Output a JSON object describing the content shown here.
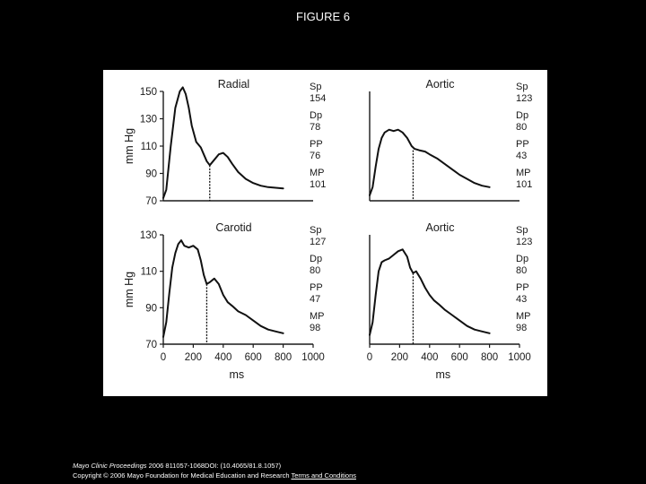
{
  "page": {
    "title": "FIGURE 6",
    "footer": {
      "journal": "Mayo Clinic Proceedings",
      "citation": " 2006 811057-1068DOI: (10.4065/81.8.1057)",
      "copyright": "Copyright © 2006 Mayo Foundation for Medical Education and Research",
      "link": "Terms and Conditions"
    }
  },
  "chart_data": [
    {
      "type": "line",
      "title": "Radial",
      "xlabel": "",
      "ylabel": "mm Hg",
      "xlim": [
        0,
        1000
      ],
      "ylim": [
        70,
        150
      ],
      "x_ticks": [],
      "y_ticks": [
        70,
        90,
        110,
        130,
        150
      ],
      "grid": false,
      "series": [
        {
          "name": "",
          "x": [
            0,
            20,
            50,
            80,
            110,
            130,
            150,
            170,
            190,
            220,
            250,
            270,
            290,
            310,
            340,
            370,
            400,
            430,
            460,
            500,
            550,
            600,
            650,
            700,
            750,
            800
          ],
          "y": [
            72,
            78,
            110,
            138,
            150,
            153,
            148,
            138,
            125,
            113,
            109,
            104,
            99,
            96,
            100,
            104,
            105,
            102,
            97,
            91,
            86,
            83,
            81,
            80,
            79.5,
            79
          ]
        }
      ],
      "marker": {
        "x": 310,
        "ymax": 96
      },
      "readouts": [
        {
          "label": "Sp",
          "value": "154"
        },
        {
          "label": "Dp",
          "value": "78"
        },
        {
          "label": "PP",
          "value": "76"
        },
        {
          "label": "MP",
          "value": "101"
        }
      ]
    },
    {
      "type": "line",
      "title": "Aortic",
      "xlabel": "",
      "ylabel": "",
      "xlim": [
        0,
        1000
      ],
      "ylim": [
        70,
        150
      ],
      "x_ticks": [],
      "y_ticks": [],
      "grid": false,
      "series": [
        {
          "name": "",
          "x": [
            0,
            20,
            40,
            60,
            80,
            100,
            130,
            160,
            190,
            220,
            250,
            280,
            300,
            330,
            370,
            400,
            450,
            500,
            550,
            600,
            650,
            700,
            750,
            800
          ],
          "y": [
            74,
            80,
            95,
            108,
            116,
            120,
            122,
            121,
            122,
            120,
            116,
            110,
            108,
            107,
            106,
            104,
            101,
            97,
            93,
            89,
            86,
            83,
            81,
            80
          ]
        }
      ],
      "marker": {
        "x": 290,
        "ymax": 107
      },
      "readouts": [
        {
          "label": "Sp",
          "value": "123"
        },
        {
          "label": "Dp",
          "value": "80"
        },
        {
          "label": "PP",
          "value": "43"
        },
        {
          "label": "MP",
          "value": "101"
        }
      ]
    },
    {
      "type": "line",
      "title": "Carotid",
      "xlabel": "ms",
      "ylabel": "mm Hg",
      "xlim": [
        0,
        1000
      ],
      "ylim": [
        70,
        130
      ],
      "x_ticks": [
        0,
        200,
        400,
        600,
        800,
        1000
      ],
      "y_ticks": [
        70,
        90,
        110,
        130
      ],
      "grid": false,
      "series": [
        {
          "name": "",
          "x": [
            0,
            20,
            40,
            60,
            80,
            100,
            120,
            140,
            170,
            200,
            230,
            250,
            270,
            290,
            310,
            340,
            370,
            400,
            430,
            460,
            500,
            550,
            600,
            650,
            700,
            750,
            800
          ],
          "y": [
            74,
            82,
            98,
            112,
            120,
            125,
            127,
            124,
            123,
            124,
            122,
            116,
            108,
            103,
            104,
            106,
            103,
            97,
            93,
            91,
            88,
            86,
            83,
            80,
            78,
            77,
            76
          ]
        }
      ],
      "marker": {
        "x": 290,
        "ymax": 103
      },
      "readouts": [
        {
          "label": "Sp",
          "value": "127"
        },
        {
          "label": "Dp",
          "value": "80"
        },
        {
          "label": "PP",
          "value": "47"
        },
        {
          "label": "MP",
          "value": "98"
        }
      ]
    },
    {
      "type": "line",
      "title": "Aortic",
      "xlabel": "ms",
      "ylabel": "",
      "xlim": [
        0,
        1000
      ],
      "ylim": [
        70,
        130
      ],
      "x_ticks": [
        0,
        200,
        400,
        600,
        800,
        1000
      ],
      "y_ticks": [],
      "grid": false,
      "series": [
        {
          "name": "",
          "x": [
            0,
            20,
            40,
            60,
            80,
            100,
            130,
            160,
            190,
            220,
            250,
            270,
            290,
            310,
            340,
            370,
            400,
            430,
            460,
            500,
            550,
            600,
            650,
            700,
            750,
            800
          ],
          "y": [
            75,
            82,
            97,
            110,
            115,
            116,
            117,
            119,
            121,
            122,
            118,
            112,
            109,
            110,
            106,
            101,
            97,
            94,
            92,
            89,
            86,
            83,
            80,
            78,
            77,
            76
          ]
        }
      ],
      "marker": {
        "x": 290,
        "ymax": 109
      },
      "readouts": [
        {
          "label": "Sp",
          "value": "123"
        },
        {
          "label": "Dp",
          "value": "80"
        },
        {
          "label": "PP",
          "value": "43"
        },
        {
          "label": "MP",
          "value": "98"
        }
      ]
    }
  ]
}
